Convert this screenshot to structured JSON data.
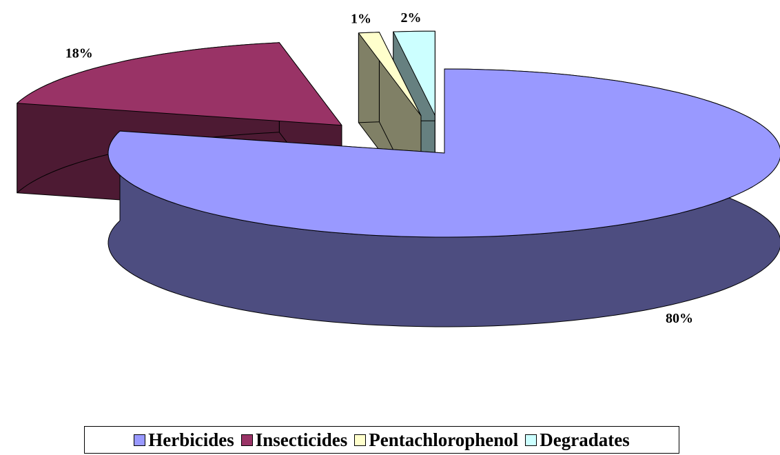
{
  "chart_data": {
    "type": "pie3d",
    "categories": [
      "Herbicides",
      "Insecticides",
      "Pentachlorophenol",
      "Degradates"
    ],
    "values": [
      80,
      18,
      1,
      2
    ],
    "value_labels": [
      "80%",
      "18%",
      "1%",
      "2%"
    ],
    "colors": [
      "#9999ff",
      "#993366",
      "#ffffcc",
      "#ccffff"
    ],
    "legend": "bottom"
  }
}
